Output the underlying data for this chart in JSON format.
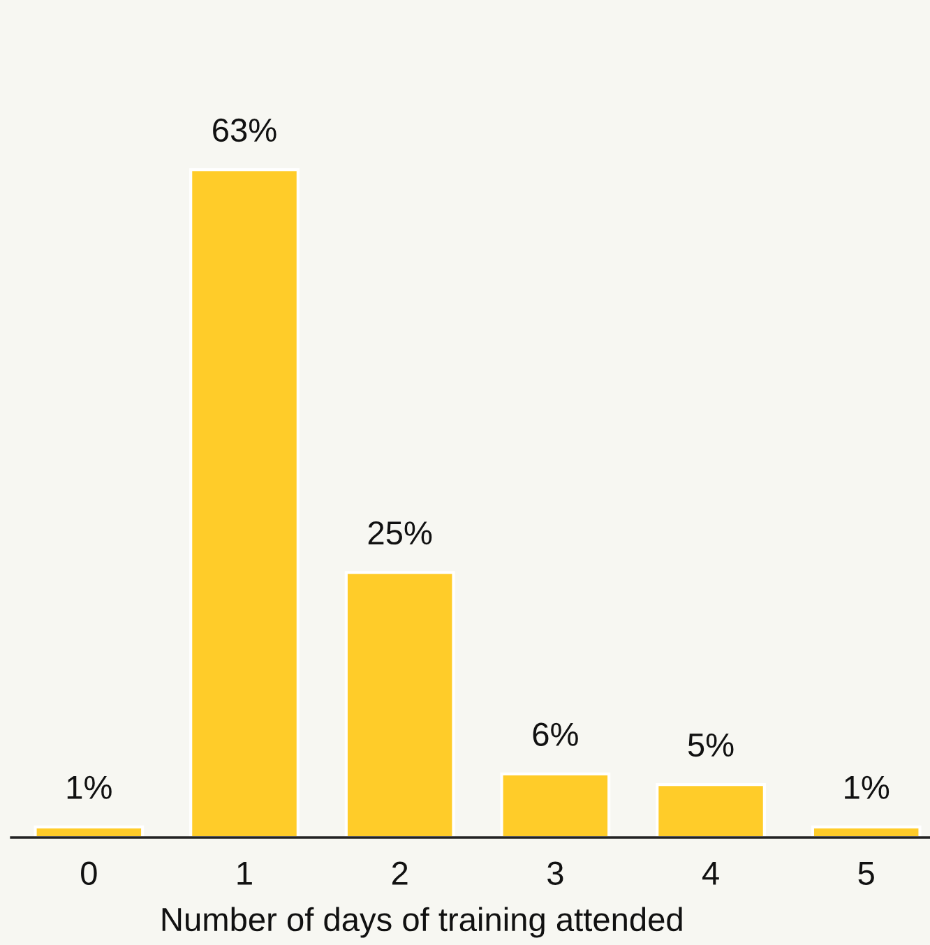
{
  "chart_data": {
    "type": "bar",
    "xlabel": "Number of days of training attended",
    "categories": [
      "0",
      "1",
      "2",
      "3",
      "4",
      "5"
    ],
    "values": [
      1,
      63,
      25,
      6,
      5,
      1
    ],
    "value_labels": [
      "1%",
      "63%",
      "25%",
      "6%",
      "5%",
      "1%"
    ],
    "color": "#ffcc29"
  }
}
